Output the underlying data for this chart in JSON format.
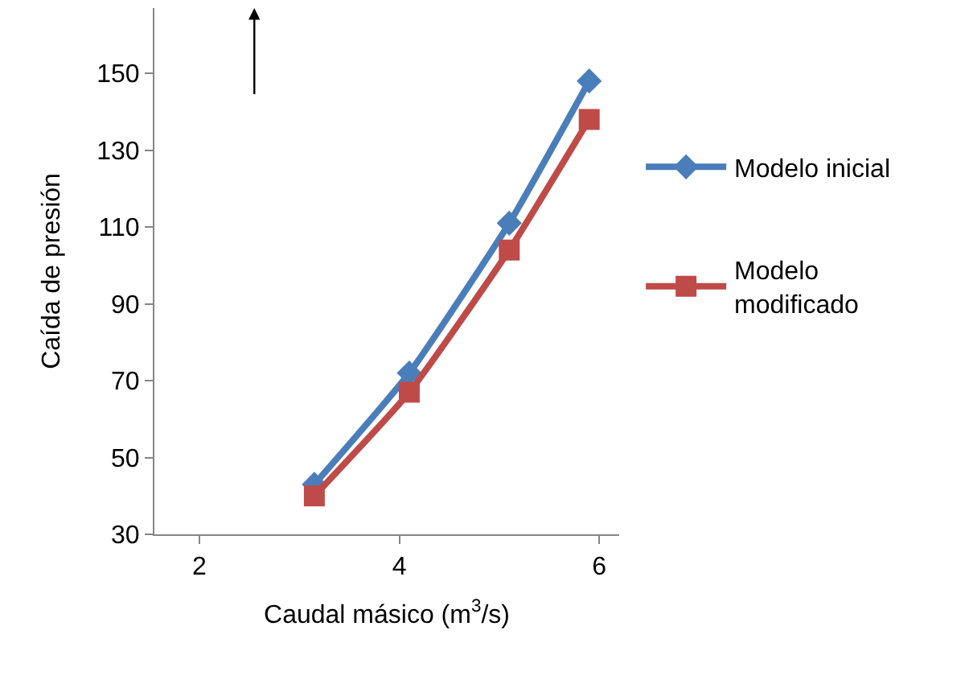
{
  "chart_data": {
    "type": "line",
    "xlabel": "Caudal másico (m$^{3}$/s)",
    "ylabel": "Caída de presión",
    "x": [
      3.15,
      4.1,
      5.1,
      5.9
    ],
    "series": [
      {
        "name": "Modelo inicial",
        "color": "#4a7ebb",
        "marker": "diamond",
        "values": [
          43,
          72,
          111,
          148
        ]
      },
      {
        "name": "Modelo\nmodificado",
        "color": "#be4b48",
        "marker": "square",
        "values": [
          40,
          67,
          104,
          138
        ]
      }
    ],
    "xlim": [
      1.55,
      6.2
    ],
    "ylim": [
      30,
      167
    ],
    "xticks": [
      2,
      4,
      6
    ],
    "yticks": [
      30,
      50,
      70,
      90,
      110,
      130,
      150
    ],
    "legend": "right",
    "line_style": "solid"
  }
}
